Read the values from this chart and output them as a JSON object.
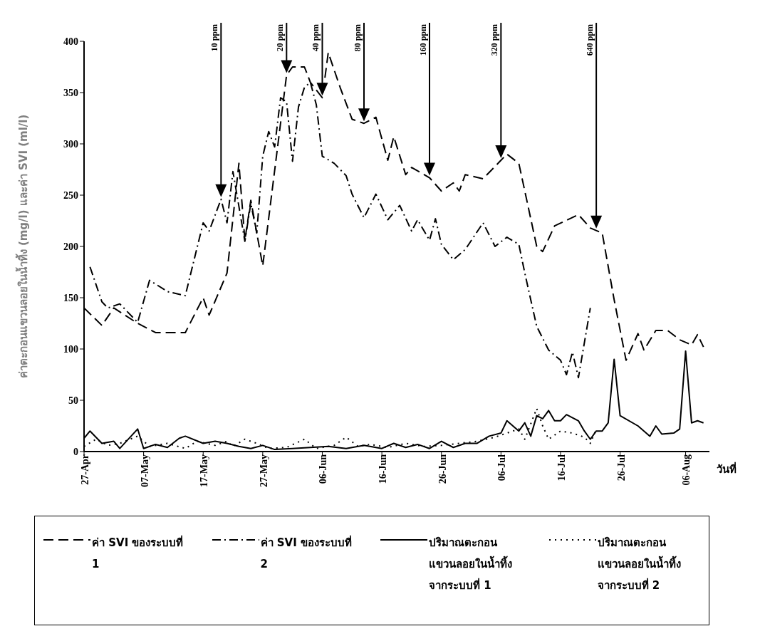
{
  "chart_data": {
    "type": "line",
    "xlabel": "วันที่",
    "ylabel": "ค่าตะกอนแขวนลอยในน้ำทิ้ง (mg/l)  และค่า SVI (ml/l)",
    "xlim": [
      "--04-27",
      "--08-10"
    ],
    "xticks": [
      {
        "value": "--04-27",
        "label": "27-Apr"
      },
      {
        "value": "--05-07",
        "label": "07-May"
      },
      {
        "value": "--05-17",
        "label": "17-May"
      },
      {
        "value": "--05-27",
        "label": "27-May"
      },
      {
        "value": "--06-06",
        "label": "06-Jun"
      },
      {
        "value": "--06-16",
        "label": "16-Jun"
      },
      {
        "value": "--06-26",
        "label": "26-Jun"
      },
      {
        "value": "--07-06",
        "label": "06-Jul"
      },
      {
        "value": "--07-16",
        "label": "16-Jul"
      },
      {
        "value": "--07-26",
        "label": "26-Jul"
      },
      {
        "value": "--08-06",
        "label": "06-Aug"
      }
    ],
    "ylim": [
      0,
      400
    ],
    "yticks": [
      0,
      50,
      100,
      150,
      200,
      250,
      300,
      350,
      400
    ],
    "grid": false,
    "legend": "bottom",
    "series": [
      {
        "name": "ค่า SVI ของระบบที่ 1",
        "color": "#000000",
        "line_style": "dashed",
        "x": [
          "--04-27",
          "--04-30",
          "--05-02",
          "--05-06",
          "--05-09",
          "--05-14",
          "--05-17",
          "--05-18",
          "--05-21",
          "--05-23",
          "--05-24",
          "--05-25",
          "--05-27",
          "--05-31",
          "--06-01",
          "--06-03",
          "--06-04",
          "--06-06",
          "--06-07",
          "--06-09",
          "--06-11",
          "--06-13",
          "--06-15",
          "--06-17",
          "--06-18",
          "--06-20",
          "--06-21",
          "--06-24",
          "--06-26",
          "--06-28",
          "--06-29",
          "--06-30",
          "--07-03",
          "--07-06",
          "--07-07",
          "--07-09",
          "--07-12",
          "--07-13",
          "--07-15",
          "--07-19",
          "--07-21",
          "--07-23",
          "--07-25",
          "--07-27",
          "--07-29",
          "--07-30",
          "--08-01",
          "--08-03",
          "--08-05",
          "--08-07",
          "--08-08",
          "--08-09"
        ],
        "values": [
          140,
          123,
          140,
          125,
          116,
          116,
          150,
          133,
          174,
          281,
          206,
          245,
          181,
          367,
          375,
          375,
          360,
          345,
          389,
          355,
          324,
          320,
          326,
          284,
          307,
          270,
          277,
          267,
          254,
          262,
          254,
          270,
          266,
          284,
          290,
          281,
          200,
          195,
          220,
          231,
          218,
          213,
          148,
          89,
          115,
          99,
          118,
          118,
          109,
          104,
          114,
          102
        ]
      },
      {
        "name": "ค่า SVI ของระบบที่ 2",
        "color": "#000000",
        "line_style": "dashdot",
        "x": [
          "--04-28",
          "--04-30",
          "--05-01",
          "--05-03",
          "--05-06",
          "--05-08",
          "--05-11",
          "--05-14",
          "--05-17",
          "--05-18",
          "--05-20",
          "--05-21",
          "--05-22",
          "--05-24",
          "--05-25",
          "--05-26",
          "--05-27",
          "--05-28",
          "--05-29",
          "--05-30",
          "--05-31",
          "--06-01",
          "--06-02",
          "--06-03",
          "--06-04",
          "--06-05",
          "--06-06",
          "--06-08",
          "--06-10",
          "--06-11",
          "--06-13",
          "--06-15",
          "--06-17",
          "--06-19",
          "--06-21",
          "--06-22",
          "--06-24",
          "--06-25",
          "--06-26",
          "--06-28",
          "--06-30",
          "--07-03",
          "--07-05",
          "--07-07",
          "--07-09",
          "--07-10",
          "--07-12",
          "--07-14",
          "--07-16",
          "--07-17",
          "--07-18",
          "--07-19",
          "--07-21"
        ],
        "values": [
          180,
          146,
          140,
          144,
          126,
          167,
          156,
          152,
          223,
          215,
          246,
          223,
          273,
          205,
          242,
          213,
          288,
          312,
          297,
          345,
          341,
          283,
          336,
          355,
          360,
          338,
          288,
          281,
          269,
          251,
          228,
          251,
          226,
          240,
          215,
          226,
          206,
          227,
          202,
          187,
          197,
          223,
          200,
          209,
          202,
          174,
          122,
          99,
          89,
          75,
          97,
          72,
          140
        ]
      },
      {
        "name": "ปริมาณตะกอนแขวนลอยในน้ำทิ้งจากระบบที่ 1",
        "color": "#000000",
        "line_style": "solid",
        "x": [
          "--04-27",
          "--04-28",
          "--04-30",
          "--05-02",
          "--05-03",
          "--05-06",
          "--05-07",
          "--05-09",
          "--05-11",
          "--05-13",
          "--05-14",
          "--05-17",
          "--05-19",
          "--05-21",
          "--05-23",
          "--05-25",
          "--05-27",
          "--05-29",
          "--06-01",
          "--06-04",
          "--06-07",
          "--06-10",
          "--06-13",
          "--06-16",
          "--06-18",
          "--06-20",
          "--06-22",
          "--06-24",
          "--06-26",
          "--06-28",
          "--06-30",
          "--07-02",
          "--07-04",
          "--07-06",
          "--07-07",
          "--07-09",
          "--07-10",
          "--07-11",
          "--07-12",
          "--07-13",
          "--07-14",
          "--07-15",
          "--07-16",
          "--07-17",
          "--07-19",
          "--07-20",
          "--07-21",
          "--07-22",
          "--07-23",
          "--07-24",
          "--07-25",
          "--07-26",
          "--07-29",
          "--07-31",
          "--08-01",
          "--08-02",
          "--08-04",
          "--08-05",
          "--08-06",
          "--08-07",
          "--08-08",
          "--08-09"
        ],
        "values": [
          13,
          20,
          8,
          10,
          3,
          22,
          3,
          7,
          4,
          13,
          15,
          8,
          10,
          8,
          5,
          3,
          6,
          2,
          3,
          4,
          5,
          3,
          6,
          3,
          8,
          4,
          7,
          3,
          10,
          4,
          8,
          8,
          15,
          18,
          30,
          20,
          28,
          15,
          35,
          32,
          40,
          30,
          30,
          36,
          30,
          20,
          12,
          20,
          20,
          28,
          90,
          35,
          25,
          15,
          25,
          17,
          18,
          22,
          98,
          28,
          30,
          28
        ]
      },
      {
        "name": "ปริมาณตะกอนแขวนลอยในน้ำทิ้งจากระบบที่ 2",
        "color": "#000000",
        "line_style": "dotted",
        "x": [
          "--04-27",
          "--04-29",
          "--05-01",
          "--05-03",
          "--05-06",
          "--05-08",
          "--05-11",
          "--05-14",
          "--05-16",
          "--05-19",
          "--05-21",
          "--05-22",
          "--05-24",
          "--05-26",
          "--05-28",
          "--05-31",
          "--06-03",
          "--06-05",
          "--06-08",
          "--06-10",
          "--06-12",
          "--06-14",
          "--06-17",
          "--06-20",
          "--06-23",
          "--06-26",
          "--06-29",
          "--07-02",
          "--07-05",
          "--07-07",
          "--07-09",
          "--07-10",
          "--07-12",
          "--07-13",
          "--07-14",
          "--07-16",
          "--07-18",
          "--07-20",
          "--07-21",
          "--07-22"
        ],
        "values": [
          5,
          12,
          6,
          8,
          15,
          5,
          8,
          3,
          10,
          6,
          10,
          5,
          12,
          8,
          3,
          4,
          12,
          3,
          6,
          14,
          5,
          7,
          4,
          8,
          5,
          6,
          8,
          10,
          14,
          18,
          22,
          12,
          42,
          25,
          12,
          20,
          18,
          14,
          8,
          22
        ]
      }
    ],
    "ref_lines": [
      {
        "axis": "x",
        "value": "--05-20",
        "label": "10 ppm"
      },
      {
        "axis": "x",
        "value": "--05-31",
        "label": "20 ppm"
      },
      {
        "axis": "x",
        "value": "--06-06",
        "label": "40 ppm"
      },
      {
        "axis": "x",
        "value": "--06-13",
        "label": "80 ppm"
      },
      {
        "axis": "x",
        "value": "--06-24",
        "label": "160 ppm"
      },
      {
        "axis": "x",
        "value": "--07-06",
        "label": "320 ppm"
      },
      {
        "axis": "x",
        "value": "--07-22",
        "label": "640 ppm"
      }
    ]
  }
}
